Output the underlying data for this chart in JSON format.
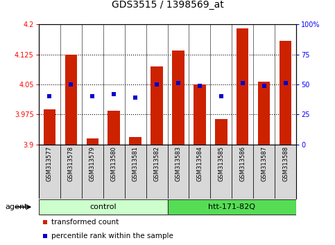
{
  "title": "GDS3515 / 1398569_at",
  "samples": [
    "GSM313577",
    "GSM313578",
    "GSM313579",
    "GSM313580",
    "GSM313581",
    "GSM313582",
    "GSM313583",
    "GSM313584",
    "GSM313585",
    "GSM313586",
    "GSM313587",
    "GSM313588"
  ],
  "red_values": [
    3.988,
    4.125,
    3.915,
    3.985,
    3.918,
    4.095,
    4.135,
    4.05,
    3.963,
    4.19,
    4.058,
    4.16
  ],
  "blue_pct": [
    40,
    50,
    40,
    42,
    39,
    50,
    51,
    49,
    40,
    51,
    49,
    51
  ],
  "ylim_left": [
    3.9,
    4.2
  ],
  "ylim_right": [
    0,
    100
  ],
  "yticks_left": [
    3.9,
    3.975,
    4.05,
    4.125,
    4.2
  ],
  "yticks_right": [
    0,
    25,
    50,
    75,
    100
  ],
  "ytick_labels_left": [
    "3.9",
    "3.975",
    "4.05",
    "4.125",
    "4.2"
  ],
  "ytick_labels_right": [
    "0",
    "25",
    "50",
    "75",
    "100%"
  ],
  "hlines": [
    4.125,
    4.05,
    3.975
  ],
  "bar_color": "#cc2200",
  "dot_color": "#0000cc",
  "bar_width": 0.55,
  "control_label": "control",
  "htt_label": "htt-171-82Q",
  "control_color": "#ccffcc",
  "htt_color": "#55dd55",
  "agent_label": "agent",
  "legend_red": "transformed count",
  "legend_blue": "percentile rank within the sample",
  "background_color": "#ffffff"
}
